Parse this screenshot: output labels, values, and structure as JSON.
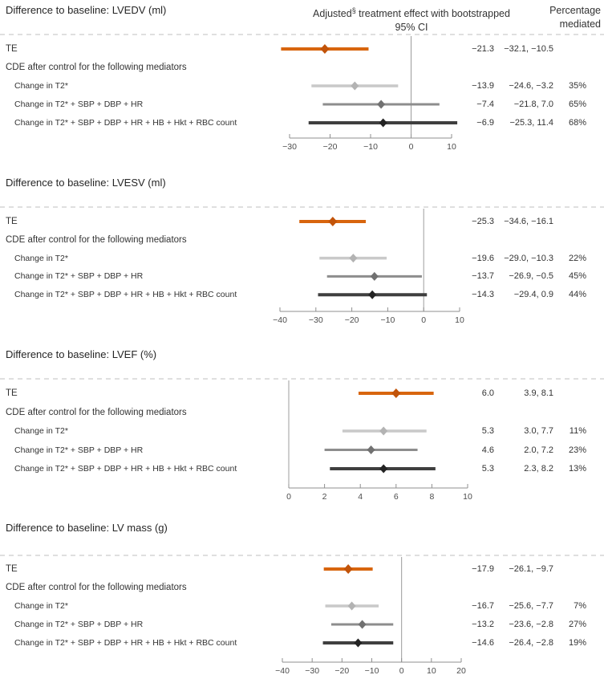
{
  "colors": {
    "te": "#d8650e",
    "te_marker": "#c2540a",
    "mediator1": "#c9c9c9",
    "mediator1_marker": "#b3b3b3",
    "mediator2": "#8d8d8d",
    "mediator2_marker": "#717171",
    "mediator3": "#3f3f3f",
    "mediator3_marker": "#232323",
    "axis": "#8f8f8f",
    "zero_line": "#9c9c9c",
    "dashed_rule": "#cccccc",
    "tick_text": "#4d4d4d"
  },
  "header": {
    "effect_line1_prefix": "Adjusted",
    "footnote_symbol": "§",
    "effect_line1_rest": " treatment effect with bootstrapped",
    "effect_line2": "95% CI",
    "pct_line1": "Percentage",
    "pct_line2": "mediated"
  },
  "chart_data": [
    {
      "type": "forest",
      "title": "Difference to baseline: LVEDV (ml)",
      "xlim": [
        -30,
        10
      ],
      "xticks": [
        -30,
        -20,
        -10,
        0,
        10
      ],
      "ref_x": 0,
      "rows": [
        {
          "kind": "te",
          "label": "TE",
          "estimate": -21.3,
          "ci_low": -32.1,
          "ci_high": -10.5,
          "est_text": "−21.3",
          "ci_text": "−32.1, −10.5",
          "pct_text": "",
          "style": "te"
        },
        {
          "kind": "section",
          "label": "CDE after control for the following mediators"
        },
        {
          "kind": "cde",
          "label": "Change in T2*",
          "estimate": -13.9,
          "ci_low": -24.6,
          "ci_high": -3.2,
          "est_text": "−13.9",
          "ci_text": "−24.6, −3.2",
          "pct_text": "35%",
          "style": "mediator1"
        },
        {
          "kind": "cde",
          "label": "Change in T2* + SBP + DBP + HR",
          "estimate": -7.4,
          "ci_low": -21.8,
          "ci_high": 7.0,
          "est_text": "−7.4",
          "ci_text": "−21.8, 7.0",
          "pct_text": "65%",
          "style": "mediator2"
        },
        {
          "kind": "cde",
          "label": "Change in T2* + SBP + DBP + HR + HB + Hkt + RBC count",
          "estimate": -6.9,
          "ci_low": -25.3,
          "ci_high": 11.4,
          "est_text": "−6.9",
          "ci_text": "−25.3, 11.4",
          "pct_text": "68%",
          "style": "mediator3"
        }
      ]
    },
    {
      "type": "forest",
      "title": "Difference to baseline: LVESV (ml)",
      "xlim": [
        -40,
        10
      ],
      "xticks": [
        -40,
        -30,
        -20,
        -10,
        0,
        10
      ],
      "ref_x": 0,
      "rows": [
        {
          "kind": "te",
          "label": "TE",
          "estimate": -25.3,
          "ci_low": -34.6,
          "ci_high": -16.1,
          "est_text": "−25.3",
          "ci_text": "−34.6, −16.1",
          "pct_text": "",
          "style": "te"
        },
        {
          "kind": "section",
          "label": "CDE after control for the following mediators"
        },
        {
          "kind": "cde",
          "label": "Change in T2*",
          "estimate": -19.6,
          "ci_low": -29.0,
          "ci_high": -10.3,
          "est_text": "−19.6",
          "ci_text": "−29.0, −10.3",
          "pct_text": "22%",
          "style": "mediator1"
        },
        {
          "kind": "cde",
          "label": "Change in T2* + SBP + DBP + HR",
          "estimate": -13.7,
          "ci_low": -26.9,
          "ci_high": -0.5,
          "est_text": "−13.7",
          "ci_text": "−26.9, −0.5",
          "pct_text": "45%",
          "style": "mediator2"
        },
        {
          "kind": "cde",
          "label": "Change in T2* + SBP + DBP + HR + HB + Hkt + RBC count",
          "estimate": -14.3,
          "ci_low": -29.4,
          "ci_high": 0.9,
          "est_text": "−14.3",
          "ci_text": "−29.4, 0.9",
          "pct_text": "44%",
          "style": "mediator3"
        }
      ]
    },
    {
      "type": "forest",
      "title": "Difference to baseline: LVEF (%)",
      "xlim": [
        0,
        10
      ],
      "xticks": [
        0,
        2,
        4,
        6,
        8,
        10
      ],
      "ref_x": 0,
      "rows": [
        {
          "kind": "te",
          "label": "TE",
          "estimate": 6.0,
          "ci_low": 3.9,
          "ci_high": 8.1,
          "est_text": "6.0",
          "ci_text": "3.9, 8.1",
          "pct_text": "",
          "style": "te"
        },
        {
          "kind": "section",
          "label": "CDE after control for the following mediators"
        },
        {
          "kind": "cde",
          "label": "Change in T2*",
          "estimate": 5.3,
          "ci_low": 3.0,
          "ci_high": 7.7,
          "est_text": "5.3",
          "ci_text": "3.0, 7.7",
          "pct_text": "11%",
          "style": "mediator1"
        },
        {
          "kind": "cde",
          "label": "Change in T2* + SBP + DBP + HR",
          "estimate": 4.6,
          "ci_low": 2.0,
          "ci_high": 7.2,
          "est_text": "4.6",
          "ci_text": "2.0, 7.2",
          "pct_text": "23%",
          "style": "mediator2"
        },
        {
          "kind": "cde",
          "label": "Change in T2* + SBP + DBP + HR + HB + Hkt + RBC count",
          "estimate": 5.3,
          "ci_low": 2.3,
          "ci_high": 8.2,
          "est_text": "5.3",
          "ci_text": "2.3, 8.2",
          "pct_text": "13%",
          "style": "mediator3"
        }
      ]
    },
    {
      "type": "forest",
      "title": "Difference to baseline: LV mass (g)",
      "xlim": [
        -40,
        20
      ],
      "xticks": [
        -40,
        -30,
        -20,
        -10,
        0,
        10,
        20
      ],
      "ref_x": 0,
      "rows": [
        {
          "kind": "te",
          "label": "TE",
          "estimate": -17.9,
          "ci_low": -26.1,
          "ci_high": -9.7,
          "est_text": "−17.9",
          "ci_text": "−26.1, −9.7",
          "pct_text": "",
          "style": "te"
        },
        {
          "kind": "section",
          "label": "CDE after control for the following mediators"
        },
        {
          "kind": "cde",
          "label": "Change in T2*",
          "estimate": -16.7,
          "ci_low": -25.6,
          "ci_high": -7.7,
          "est_text": "−16.7",
          "ci_text": "−25.6, −7.7",
          "pct_text": "7%",
          "style": "mediator1"
        },
        {
          "kind": "cde",
          "label": "Change in T2* + SBP + DBP + HR",
          "estimate": -13.2,
          "ci_low": -23.6,
          "ci_high": -2.8,
          "est_text": "−13.2",
          "ci_text": "−23.6, −2.8",
          "pct_text": "27%",
          "style": "mediator2"
        },
        {
          "kind": "cde",
          "label": "Change in T2* + SBP + DBP + HR + HB + Hkt + RBC count",
          "estimate": -14.6,
          "ci_low": -26.4,
          "ci_high": -2.8,
          "est_text": "−14.6",
          "ci_text": "−26.4, −2.8",
          "pct_text": "19%",
          "style": "mediator3"
        }
      ]
    }
  ]
}
